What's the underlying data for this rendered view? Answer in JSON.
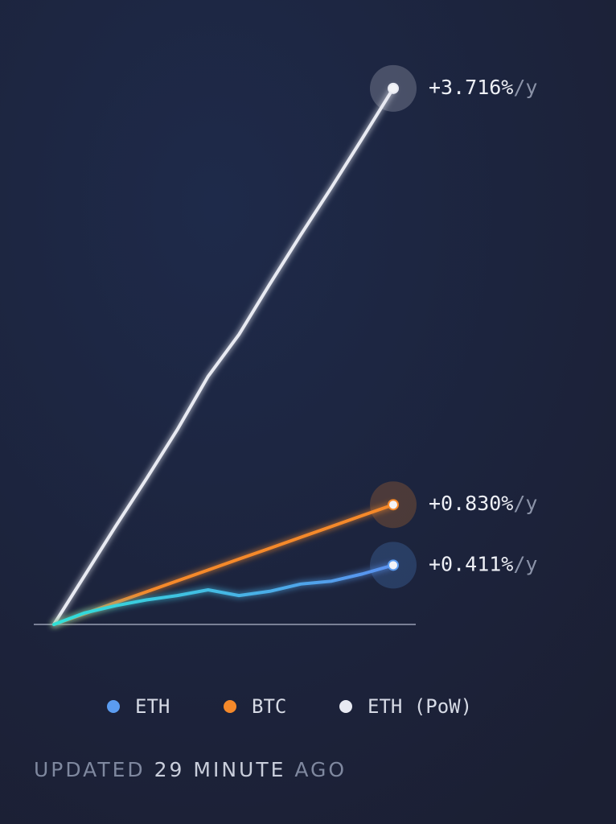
{
  "chart_data": {
    "type": "line",
    "categories": [
      null,
      null,
      null,
      null,
      null,
      null,
      null,
      null,
      null,
      null,
      null,
      null
    ],
    "ylim": [
      0,
      4.1
    ],
    "label_suffix": "/y",
    "series": [
      {
        "name": "ETH",
        "color": "#5b9cf0",
        "values": [
          0,
          0.08,
          0.13,
          0.17,
          0.2,
          0.24,
          0.2,
          0.23,
          0.28,
          0.3,
          0.35,
          0.411
        ],
        "value_labels": {
          "11": "+0.411%"
        }
      },
      {
        "name": "BTC",
        "color": "#f5892a",
        "values": [
          0,
          0.075,
          0.151,
          0.226,
          0.302,
          0.377,
          0.453,
          0.528,
          0.604,
          0.679,
          0.755,
          0.83
        ],
        "value_labels": {
          "11": "+0.830%"
        }
      },
      {
        "name": "ETH (PoW)",
        "color": "#e8eaf2",
        "values": [
          0,
          0.34,
          0.68,
          1.01,
          1.35,
          1.72,
          2.01,
          2.36,
          2.7,
          3.03,
          3.37,
          3.716
        ],
        "value_labels": {
          "11": "+3.716%"
        }
      }
    ],
    "footer": {
      "parts": [
        "UPDATED",
        "29",
        "MINUTE",
        "AGO"
      ],
      "highlight": [
        false,
        true,
        true,
        false
      ]
    }
  }
}
